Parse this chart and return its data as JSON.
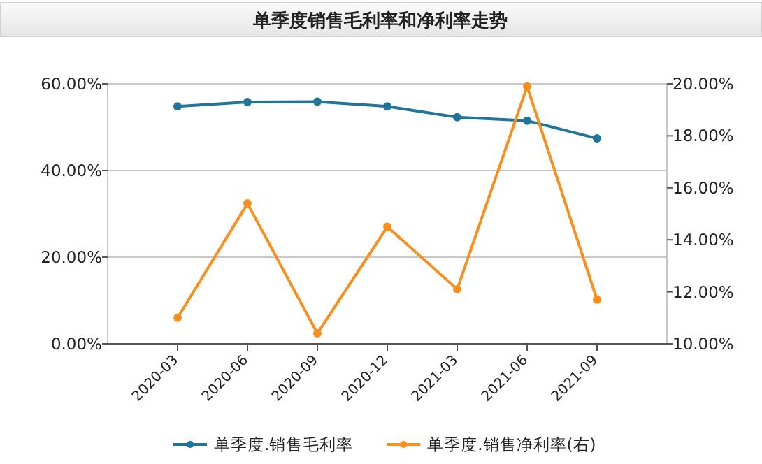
{
  "chart_data": {
    "type": "line",
    "title": "单季度销售毛利率和净利率走势",
    "categories": [
      "2020-03",
      "2020-06",
      "2020-09",
      "2020-12",
      "2021-03",
      "2021-06",
      "2021-09"
    ],
    "series": [
      {
        "name": "单季度.销售毛利率",
        "color": "#21759b",
        "values": [
          54.8,
          55.8,
          55.9,
          54.8,
          52.3,
          51.5,
          47.4
        ]
      },
      {
        "name": "单季度.销售净利率(右)",
        "color": "#f7901e",
        "axis": "y2",
        "values": [
          11.0,
          15.4,
          10.4,
          14.5,
          12.1,
          19.9,
          11.7
        ]
      }
    ],
    "ylim": [
      0,
      60
    ],
    "yticks": [
      {
        "value": 0,
        "label": "0.00%"
      },
      {
        "value": 20,
        "label": "20.00%"
      },
      {
        "value": 40,
        "label": "40.00%"
      },
      {
        "value": 60,
        "label": "60.00%"
      }
    ],
    "y2lim": [
      10,
      20
    ],
    "y2ticks": [
      {
        "value": 10,
        "label": "10.00%"
      },
      {
        "value": 12,
        "label": "12.00%"
      },
      {
        "value": 14,
        "label": "14.00%"
      },
      {
        "value": 16,
        "label": "16.00%"
      },
      {
        "value": 18,
        "label": "18.00%"
      },
      {
        "value": 20,
        "label": "20.00%"
      }
    ],
    "grid": "y",
    "legend": "bottom",
    "marker": "circle",
    "line_style": "solid"
  }
}
